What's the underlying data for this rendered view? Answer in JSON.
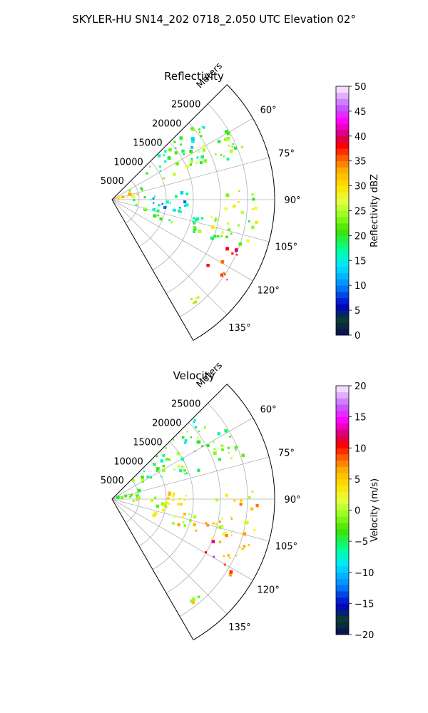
{
  "figure": {
    "title": "SKYLER-HU  SN14_202  0718_2.050 UTC Elevation 02°"
  },
  "panels": [
    {
      "title": "Reflectivity",
      "radial_label": "Meters",
      "range_ticks": [
        "5000",
        "10000",
        "15000",
        "20000",
        "25000"
      ],
      "angle_ticks": [
        "60°",
        "75°",
        "90°",
        "105°",
        "120°",
        "135°"
      ],
      "colorbar": {
        "label": "Reflectivity dBZ",
        "min": 0,
        "max": 50,
        "ticks": [
          "0",
          "5",
          "10",
          "15",
          "20",
          "25",
          "30",
          "35",
          "40",
          "45",
          "50"
        ]
      }
    },
    {
      "title": "Velocity",
      "radial_label": "Meters",
      "range_ticks": [
        "5000",
        "10000",
        "15000",
        "20000",
        "25000"
      ],
      "angle_ticks": [
        "60°",
        "75°",
        "90°",
        "105°",
        "120°",
        "135°"
      ],
      "colorbar": {
        "label": "Velocity (m/s)",
        "min": -20,
        "max": 20,
        "ticks": [
          "−20",
          "−15",
          "−10",
          "−5",
          "0",
          "5",
          "10",
          "15",
          "20"
        ]
      }
    }
  ],
  "chart_data": [
    {
      "type": "heatmap",
      "title": "Reflectivity",
      "projection": "polar sector",
      "azimuth_range_deg": [
        45,
        150
      ],
      "range_lim_m": [
        0,
        30000
      ],
      "range_ticks_m": [
        5000,
        10000,
        15000,
        20000,
        25000
      ],
      "azimuth_ticks_deg": [
        60,
        75,
        90,
        105,
        120,
        135
      ],
      "grid": true,
      "colorbar": {
        "label": "Reflectivity dBZ",
        "range": [
          0,
          50
        ],
        "colormap": "pyart_HomeyerRainbow"
      },
      "echo_regions": [
        {
          "az_deg": [
            46,
            58
          ],
          "range_m": [
            2000,
            22000
          ],
          "value": 18
        },
        {
          "az_deg": [
            58,
            72
          ],
          "range_m": [
            1500,
            26000
          ],
          "value": 22
        },
        {
          "az_deg": [
            72,
            84
          ],
          "range_m": [
            0,
            6000
          ],
          "value": 32
        },
        {
          "az_deg": [
            84,
            100
          ],
          "range_m": [
            1000,
            14000
          ],
          "value": 14
        },
        {
          "az_deg": [
            100,
            112
          ],
          "range_m": [
            3000,
            22000
          ],
          "value": 20
        },
        {
          "az_deg": [
            86,
            112
          ],
          "range_m": [
            18000,
            27000
          ],
          "value": 25
        },
        {
          "az_deg": [
            110,
            125
          ],
          "range_m": [
            19000,
            26000
          ],
          "value": 36
        },
        {
          "az_deg": [
            138,
            142
          ],
          "range_m": [
            23000,
            24500
          ],
          "value": 28
        }
      ]
    },
    {
      "type": "heatmap",
      "title": "Velocity",
      "projection": "polar sector",
      "azimuth_range_deg": [
        45,
        150
      ],
      "range_lim_m": [
        0,
        30000
      ],
      "range_ticks_m": [
        5000,
        10000,
        15000,
        20000,
        25000
      ],
      "azimuth_ticks_deg": [
        60,
        75,
        90,
        105,
        120,
        135
      ],
      "grid": true,
      "colorbar": {
        "label": "Velocity (m/s)",
        "range": [
          -20,
          20
        ],
        "colormap": "pyart_BuDRd18"
      },
      "echo_regions": [
        {
          "az_deg": [
            46,
            58
          ],
          "range_m": [
            2000,
            22000
          ],
          "value": -4
        },
        {
          "az_deg": [
            58,
            72
          ],
          "range_m": [
            1500,
            26000
          ],
          "value": -3
        },
        {
          "az_deg": [
            72,
            84
          ],
          "range_m": [
            0,
            6000
          ],
          "value": -2
        },
        {
          "az_deg": [
            84,
            100
          ],
          "range_m": [
            1000,
            14000
          ],
          "value": 2
        },
        {
          "az_deg": [
            100,
            112
          ],
          "range_m": [
            3000,
            22000
          ],
          "value": 3
        },
        {
          "az_deg": [
            86,
            112
          ],
          "range_m": [
            18000,
            27000
          ],
          "value": 4
        },
        {
          "az_deg": [
            110,
            125
          ],
          "range_m": [
            19000,
            26000
          ],
          "value": 9
        },
        {
          "az_deg": [
            138,
            142
          ],
          "range_m": [
            23000,
            24500
          ],
          "value": 1
        }
      ]
    }
  ]
}
